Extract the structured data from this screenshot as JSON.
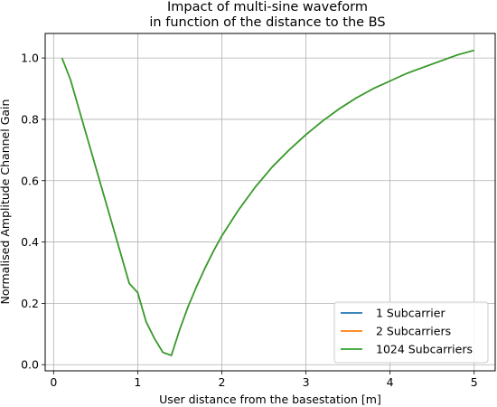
{
  "chart_data": {
    "type": "line",
    "title_lines": [
      "Impact of multi-sine waveform",
      "in function of the distance to the BS"
    ],
    "xlabel": "User distance from the basestation [m]",
    "ylabel": "Normalised Amplitude Channel Gain",
    "xlim": [
      -0.1,
      5.25
    ],
    "ylim": [
      -0.02,
      1.08
    ],
    "xticks": [
      0,
      1,
      2,
      3,
      4,
      5
    ],
    "xtick_labels": [
      "0",
      "1",
      "2",
      "3",
      "4",
      "5"
    ],
    "yticks": [
      0.0,
      0.2,
      0.4,
      0.6,
      0.8,
      1.0
    ],
    "ytick_labels": [
      "0.0",
      "0.2",
      "0.4",
      "0.6",
      "0.8",
      "1.0"
    ],
    "grid": true,
    "legend_position": "bottom-right",
    "x": [
      0.1,
      0.2,
      0.3,
      0.4,
      0.5,
      0.6,
      0.7,
      0.8,
      0.9,
      1.0,
      1.1,
      1.2,
      1.3,
      1.4,
      1.5,
      1.6,
      1.7,
      1.8,
      1.9,
      2.0,
      2.2,
      2.4,
      2.6,
      2.8,
      3.0,
      3.2,
      3.4,
      3.6,
      3.8,
      4.0,
      4.2,
      4.4,
      4.6,
      4.8,
      5.0
    ],
    "series": [
      {
        "name": "1 Subcarrier",
        "color": "#1f77b4",
        "values": [
          1.0,
          0.93,
          0.835,
          0.74,
          0.645,
          0.55,
          0.455,
          0.36,
          0.265,
          0.235,
          0.14,
          0.085,
          0.04,
          0.03,
          0.115,
          0.19,
          0.255,
          0.315,
          0.37,
          0.42,
          0.505,
          0.58,
          0.645,
          0.7,
          0.75,
          0.795,
          0.835,
          0.87,
          0.9,
          0.925,
          0.95,
          0.97,
          0.99,
          1.01,
          1.025
        ]
      },
      {
        "name": "2 Subcarriers",
        "color": "#ff7f0e",
        "values": [
          1.0,
          0.93,
          0.835,
          0.74,
          0.645,
          0.55,
          0.455,
          0.36,
          0.265,
          0.235,
          0.14,
          0.085,
          0.04,
          0.03,
          0.115,
          0.19,
          0.255,
          0.315,
          0.37,
          0.42,
          0.505,
          0.58,
          0.645,
          0.7,
          0.75,
          0.795,
          0.835,
          0.87,
          0.9,
          0.925,
          0.95,
          0.97,
          0.99,
          1.01,
          1.025
        ]
      },
      {
        "name": "1024 Subcarriers",
        "color": "#2ca02c",
        "values": [
          1.0,
          0.93,
          0.835,
          0.74,
          0.645,
          0.55,
          0.455,
          0.36,
          0.265,
          0.235,
          0.14,
          0.085,
          0.04,
          0.03,
          0.115,
          0.19,
          0.255,
          0.315,
          0.37,
          0.42,
          0.505,
          0.58,
          0.645,
          0.7,
          0.75,
          0.795,
          0.835,
          0.87,
          0.9,
          0.925,
          0.95,
          0.97,
          0.99,
          1.01,
          1.025
        ]
      }
    ]
  }
}
